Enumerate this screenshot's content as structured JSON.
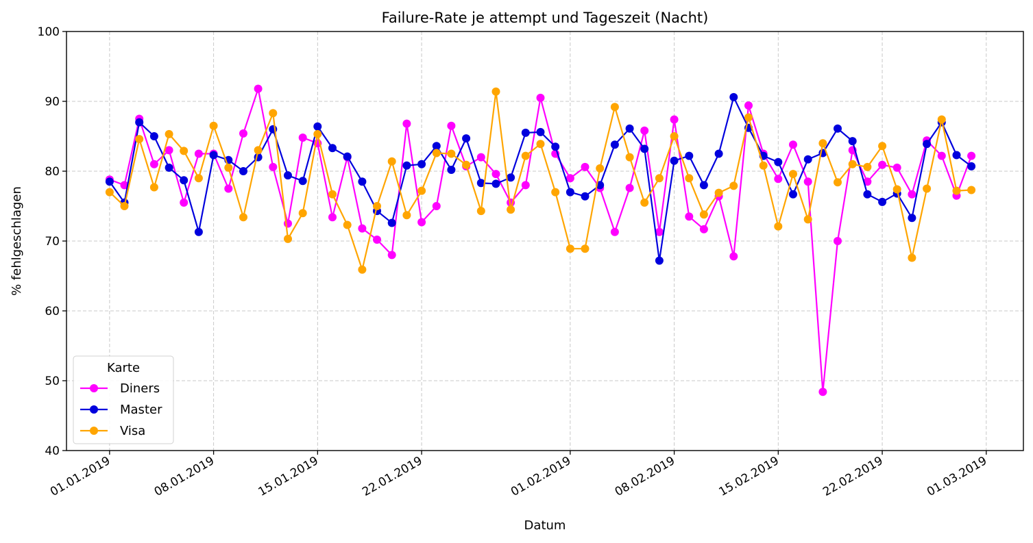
{
  "chart_data": {
    "type": "line",
    "title": "Failure-Rate je attempt und Tageszeit (Nacht)",
    "xlabel": "Datum",
    "ylabel": "% fehlgeschlagen",
    "ylim": [
      40,
      100
    ],
    "y_ticks": [
      40,
      50,
      60,
      70,
      80,
      90,
      100
    ],
    "x_start_date": "2019-01-01",
    "x_range_days": [
      -2.9,
      61.5
    ],
    "x_ticks": [
      {
        "day": 0,
        "label": "01.01.2019"
      },
      {
        "day": 7,
        "label": "08.01.2019"
      },
      {
        "day": 14,
        "label": "15.01.2019"
      },
      {
        "day": 21,
        "label": "22.01.2019"
      },
      {
        "day": 31,
        "label": "01.02.2019"
      },
      {
        "day": 38,
        "label": "08.02.2019"
      },
      {
        "day": 45,
        "label": "15.02.2019"
      },
      {
        "day": 52,
        "label": "22.02.2019"
      },
      {
        "day": 59,
        "label": "01.03.2019"
      }
    ],
    "grid": true,
    "legend": {
      "title": "Karte",
      "position": "lower-left"
    },
    "series": [
      {
        "name": "Diners",
        "color": "#ff00ff",
        "values": [
          78.8,
          78.0,
          87.5,
          81.0,
          83.0,
          75.5,
          82.5,
          82.5,
          77.5,
          85.4,
          91.8,
          80.6,
          72.5,
          84.8,
          84.0,
          73.4,
          82.0,
          71.8,
          70.2,
          68.0,
          86.8,
          72.7,
          75.0,
          86.5,
          80.7,
          82.0,
          79.6,
          75.5,
          78.0,
          90.5,
          82.5,
          79.0,
          80.6,
          77.6,
          71.3,
          77.6,
          85.8,
          71.3,
          87.4,
          73.5,
          71.7,
          76.4,
          67.8,
          89.4,
          82.5,
          78.9,
          83.8,
          78.5,
          48.4,
          70.0,
          83.0,
          78.5,
          80.9,
          80.5,
          76.7,
          84.4,
          82.2,
          76.5,
          82.2
        ]
      },
      {
        "name": "Master",
        "color": "#0000dd",
        "values": [
          78.5,
          75.5,
          87.0,
          85.0,
          80.5,
          78.7,
          71.3,
          82.3,
          81.6,
          80.0,
          82.0,
          86.0,
          79.4,
          78.6,
          86.4,
          83.3,
          82.1,
          78.5,
          74.3,
          72.6,
          80.8,
          81.0,
          83.6,
          80.2,
          84.7,
          78.3,
          78.2,
          79.1,
          85.5,
          85.6,
          83.5,
          77.0,
          76.4,
          78.0,
          83.8,
          86.1,
          83.2,
          67.2,
          81.5,
          82.2,
          78.0,
          82.5,
          90.6,
          86.2,
          82.2,
          81.3,
          76.7,
          81.7,
          82.6,
          86.1,
          84.3,
          76.7,
          75.6,
          76.8,
          73.3,
          83.9,
          87.0,
          82.3,
          80.7
        ]
      },
      {
        "name": "Visa",
        "color": "#ffa500",
        "values": [
          77.0,
          75.0,
          84.6,
          77.7,
          85.3,
          82.9,
          79.0,
          86.5,
          80.5,
          73.4,
          83.0,
          88.3,
          70.3,
          74.0,
          85.3,
          76.7,
          72.3,
          65.9,
          75.0,
          81.4,
          73.7,
          77.2,
          82.6,
          82.5,
          80.9,
          74.3,
          91.4,
          74.5,
          82.2,
          83.9,
          77.0,
          68.9,
          68.9,
          80.4,
          89.2,
          82.0,
          75.5,
          79.0,
          85.0,
          79.0,
          73.8,
          76.9,
          77.9,
          87.7,
          80.8,
          72.1,
          79.6,
          73.1,
          84.0,
          78.4,
          81.0,
          80.6,
          83.6,
          77.4,
          67.6,
          77.5,
          87.4,
          77.2,
          77.3
        ]
      }
    ]
  }
}
